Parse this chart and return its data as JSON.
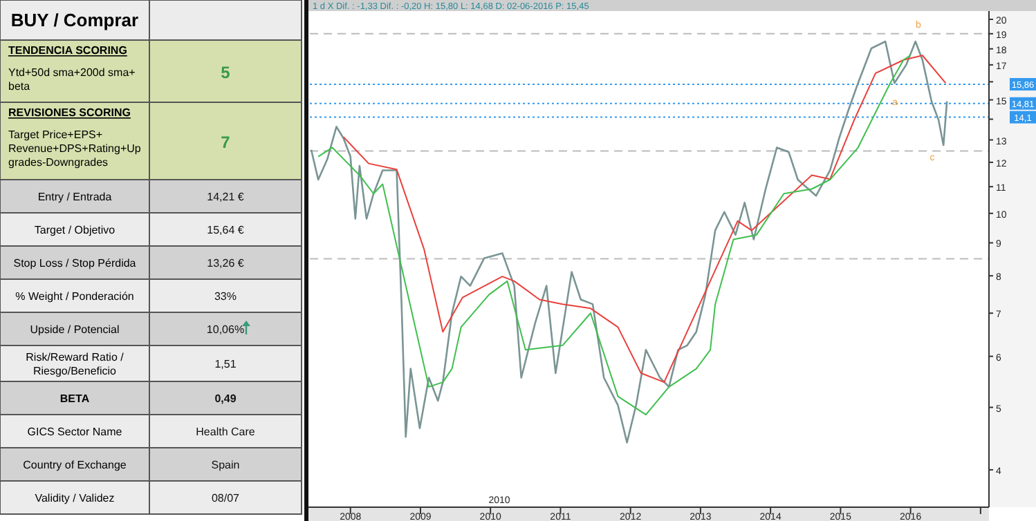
{
  "chart_data": [
    {
      "type": "other",
      "title": "BUY / Comprar",
      "categories": [
        "TENDENCIA SCORING\nYtd+50d sma+200d sma+\nbeta",
        "REVISIONES SCORING\nTarget Price+EPS+\nRevenue+DPS+Rating+Up\ngrades-Downgrades",
        "Entry / Entrada",
        "Target / Objetivo",
        "Stop Loss / Stop Pérdida",
        "% Weight / Ponderación",
        "Upside / Potencial",
        "Risk/Reward  Ratio /\nRiesgo/Beneficio",
        "BETA",
        "GICS Sector Name",
        "Country of Exchange",
        "Validity / Validez"
      ],
      "value_labels": [
        "5",
        "7",
        "14,21 €",
        "15,64 €",
        "13,26 €",
        "33%",
        "10,06%",
        "1,51",
        "0,49",
        "Health Care",
        "Spain",
        "08/07"
      ],
      "colors": [
        "#d6e0ae",
        "#d6e0ae",
        "#d2d2d2",
        "#ececec",
        "#d2d2d2",
        "#ececec",
        "#d2d2d2",
        "#ececec",
        "#d2d2d2",
        "#ececec",
        "#d2d2d2",
        "#ececec"
      ]
    },
    {
      "type": "line",
      "subtitle": "1 d X Dif. : -1,33 Dif. : -0,20 H: 15,80 L: 14,68 D: 02-06-2016 P: 15,45",
      "log": "y",
      "xlim": [
        2007.42,
        2017.12
      ],
      "ylim": [
        3.5,
        20.4
      ],
      "xticks": [
        2008,
        2009,
        2010,
        2011,
        2012,
        2013,
        2014,
        2015,
        2016,
        {
          "value": 2017,
          "label": null
        }
      ],
      "yticks": [
        4,
        5,
        6,
        7,
        8,
        9,
        10,
        11,
        12,
        13,
        {
          "value": 14,
          "label": null
        },
        15,
        {
          "value": 16,
          "label": null
        },
        17,
        18,
        19,
        20
      ],
      "series": [
        {
          "color": "#7a9494",
          "x": [
            2007.44,
            2007.54,
            2007.67,
            2007.8,
            2007.9,
            2008.0,
            2008.07,
            2008.13,
            2008.23,
            2008.33,
            2008.46,
            2008.66,
            2008.73,
            2008.79,
            2008.86,
            2008.99,
            2009.12,
            2009.25,
            2009.32,
            2009.45,
            2009.58,
            2009.71,
            2009.91,
            2010.17,
            2010.34,
            2010.44,
            2010.64,
            2010.8,
            2010.93,
            2011.16,
            2011.29,
            2011.46,
            2011.62,
            2011.82,
            2011.95,
            2012.08,
            2012.22,
            2012.42,
            2012.55,
            2012.68,
            2012.81,
            2012.94,
            2013.07,
            2013.21,
            2013.34,
            2013.5,
            2013.63,
            2013.76,
            2013.93,
            2014.09,
            2014.26,
            2014.39,
            2014.65,
            2014.85,
            2014.98,
            2015.11,
            2015.25,
            2015.44,
            2015.64,
            2015.77,
            2015.94,
            2016.07,
            2016.17,
            2016.3,
            2016.4,
            2016.47,
            2016.52
          ],
          "values": [
            12.55,
            11.28,
            12.14,
            13.63,
            13.08,
            12.25,
            9.81,
            11.85,
            9.81,
            10.73,
            11.66,
            11.66,
            7.23,
            4.5,
            5.74,
            4.64,
            5.56,
            5.12,
            5.47,
            7.0,
            7.98,
            7.72,
            8.52,
            8.67,
            7.72,
            5.56,
            6.77,
            7.72,
            5.65,
            8.11,
            7.35,
            7.23,
            5.56,
            5.04,
            4.41,
            5.04,
            6.14,
            5.56,
            5.38,
            6.14,
            6.24,
            6.55,
            7.48,
            9.41,
            10.05,
            9.26,
            10.39,
            9.11,
            10.91,
            12.65,
            12.45,
            11.28,
            10.65,
            11.66,
            13.08,
            14.43,
            15.93,
            18.03,
            18.48,
            15.93,
            17.02,
            18.48,
            17.3,
            14.92,
            13.96,
            12.76,
            14.92
          ]
        },
        {
          "color": "#e8413c",
          "x": [
            2007.9,
            2008.26,
            2008.66,
            2009.05,
            2009.32,
            2009.6,
            2010.17,
            2010.34,
            2010.7,
            2011.03,
            2011.43,
            2011.82,
            2012.15,
            2012.48,
            2013.53,
            2013.73,
            2014.59,
            2014.85,
            2015.2,
            2015.5,
            2015.9,
            2016.17,
            2016.5
          ],
          "values": [
            13.14,
            11.95,
            11.7,
            8.81,
            6.55,
            7.4,
            7.98,
            7.85,
            7.35,
            7.23,
            7.12,
            6.66,
            5.65,
            5.47,
            9.73,
            9.41,
            11.46,
            11.3,
            14.0,
            16.5,
            17.3,
            17.58,
            15.93
          ]
        },
        {
          "color": "#3fbf4f",
          "x": [
            2007.54,
            2007.74,
            2008.13,
            2008.33,
            2008.46,
            2009.12,
            2009.32,
            2009.45,
            2009.58,
            2009.98,
            2010.24,
            2010.5,
            2011.03,
            2011.43,
            2011.82,
            2012.22,
            2012.55,
            2012.94,
            2013.14,
            2013.21,
            2013.47,
            2013.8,
            2014.19,
            2014.59,
            2014.85,
            2015.25,
            2015.71,
            2015.9,
            2016.0
          ],
          "values": [
            12.25,
            12.65,
            11.46,
            10.73,
            11.1,
            5.38,
            5.47,
            5.74,
            6.66,
            7.48,
            7.85,
            6.14,
            6.24,
            7.0,
            5.2,
            4.87,
            5.38,
            5.74,
            6.14,
            7.23,
            9.11,
            9.26,
            10.73,
            10.91,
            11.28,
            12.65,
            15.93,
            17.3,
            17.6
          ]
        }
      ],
      "ref_lines": [
        {
          "axis": "y",
          "value": 19,
          "color": "#bbbbbb",
          "line_style": "dashed"
        },
        {
          "axis": "y",
          "value": 12.5,
          "color": "#bbbbbb",
          "line_style": "dashed"
        },
        {
          "axis": "y",
          "value": 8.5,
          "color": "#bbbbbb",
          "line_style": "dashed"
        },
        {
          "axis": "y",
          "value": 15.86,
          "label": "15,86",
          "color": "#3399ee",
          "line_style": "dotted"
        },
        {
          "axis": "y",
          "value": 14.81,
          "label": "14,81",
          "color": "#3399ee",
          "line_style": "dotted"
        },
        {
          "axis": "y",
          "value": 14.1,
          "label": "14,1",
          "color": "#3399ee",
          "line_style": "dotted"
        }
      ],
      "annotations": [
        "b",
        "a",
        "c",
        "2010"
      ]
    }
  ]
}
